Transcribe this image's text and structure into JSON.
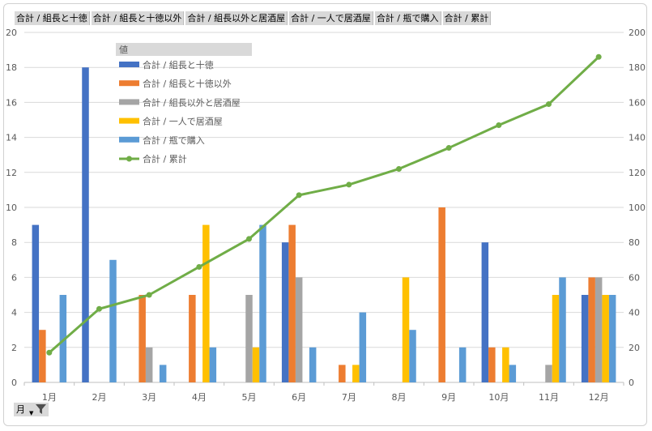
{
  "chart_data": {
    "type": "bar",
    "categories": [
      "1月",
      "2月",
      "3月",
      "4月",
      "5月",
      "6月",
      "7月",
      "8月",
      "9月",
      "10月",
      "11月",
      "12月"
    ],
    "series": [
      {
        "name": "合計 / 組長と十徳",
        "type": "bar",
        "axis": "left",
        "color": "#4472C4",
        "values": [
          9,
          18,
          0,
          0,
          0,
          8,
          0,
          0,
          0,
          8,
          0,
          5
        ]
      },
      {
        "name": "合計 / 組長と十徳以外",
        "type": "bar",
        "axis": "left",
        "color": "#ED7D31",
        "values": [
          3,
          0,
          5,
          5,
          0,
          9,
          1,
          0,
          10,
          2,
          0,
          6
        ]
      },
      {
        "name": "合計 / 組長以外と居酒屋",
        "type": "bar",
        "axis": "left",
        "color": "#A5A5A5",
        "values": [
          0,
          0,
          2,
          0,
          5,
          6,
          0,
          0,
          0,
          0,
          1,
          6
        ]
      },
      {
        "name": "合計 / 一人で居酒屋",
        "type": "bar",
        "axis": "left",
        "color": "#FFC000",
        "values": [
          0,
          0,
          0,
          9,
          2,
          0,
          1,
          6,
          0,
          2,
          5,
          5
        ]
      },
      {
        "name": "合計 / 瓶で購入",
        "type": "bar",
        "axis": "left",
        "color": "#5B9BD5",
        "values": [
          5,
          7,
          1,
          2,
          9,
          2,
          4,
          3,
          2,
          1,
          6,
          5
        ]
      },
      {
        "name": "合計 / 累計",
        "type": "line",
        "axis": "right",
        "color": "#70AD47",
        "values": [
          17,
          42,
          50,
          66,
          82,
          107,
          113,
          122,
          134,
          147,
          159,
          186
        ]
      }
    ],
    "y_left": {
      "min": 0,
      "max": 20,
      "step": 2,
      "ticks": [
        "0",
        "2",
        "4",
        "6",
        "8",
        "10",
        "12",
        "14",
        "16",
        "18",
        "20"
      ]
    },
    "y_right": {
      "min": 0,
      "max": 200,
      "step": 20,
      "ticks": [
        "0",
        "20",
        "40",
        "60",
        "80",
        "100",
        "120",
        "140",
        "160",
        "180",
        "200"
      ]
    },
    "legend_title": "値",
    "legend_position": "top-left",
    "grid": true,
    "field_buttons": [
      "合計 / 組長と十徳",
      "合計 / 組長と十徳以外",
      "合計 / 組長以外と居酒屋",
      "合計 / 一人で居酒屋",
      "合計 / 瓶で購入",
      "合計 / 累計"
    ],
    "axis_field_button": "月"
  }
}
